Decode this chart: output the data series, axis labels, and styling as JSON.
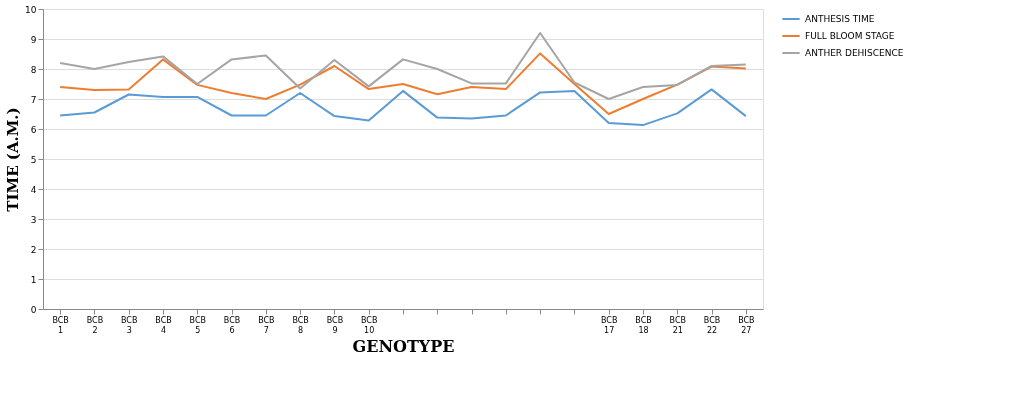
{
  "chart_data": {
    "type": "line",
    "xlabel": "GENOTYPE",
    "ylabel": "TIME (A.M.)",
    "categories": [
      "BCB 1",
      "BCB 2",
      "BCB 3",
      "BCB 4",
      "BCB 5",
      "BCB 6",
      "BCB 7",
      "BCB 8",
      "BCB 9",
      "BCB 10",
      null,
      null,
      null,
      null,
      null,
      null,
      "BCB 17",
      "BCB 18",
      "BCB 21",
      "BCB 22",
      "BCB 27"
    ],
    "series": [
      {
        "name": "ANTHESIS TIME",
        "color": "#5b9bd5",
        "values": [
          6.45,
          6.55,
          7.15,
          7.07,
          7.07,
          6.45,
          6.45,
          7.2,
          6.43,
          6.28,
          7.27,
          6.38,
          6.35,
          6.45,
          7.22,
          7.27,
          6.2,
          6.13,
          6.52,
          7.32,
          6.43
        ]
      },
      {
        "name": "FULL BLOOM STAGE",
        "color": "#ed7d31",
        "values": [
          7.4,
          7.3,
          7.32,
          8.32,
          7.47,
          7.2,
          7.0,
          7.48,
          8.1,
          7.33,
          7.5,
          7.16,
          7.4,
          7.33,
          8.52,
          7.5,
          6.5,
          7.0,
          7.48,
          8.08,
          8.02
        ]
      },
      {
        "name": "ANTHER DEHISCENCE",
        "color": "#a5a5a5",
        "values": [
          8.2,
          8.0,
          8.23,
          8.42,
          7.5,
          8.32,
          8.45,
          7.35,
          8.3,
          7.42,
          8.32,
          8.0,
          7.52,
          7.52,
          9.2,
          7.55,
          7.0,
          7.4,
          7.47,
          8.1,
          8.15
        ]
      }
    ],
    "ylim": [
      0,
      10
    ],
    "yticks": [
      0,
      1,
      2,
      3,
      4,
      5,
      6,
      7,
      8,
      9,
      10
    ],
    "grid": "y",
    "legend": "right",
    "marker": "none",
    "line_style": "solid"
  }
}
